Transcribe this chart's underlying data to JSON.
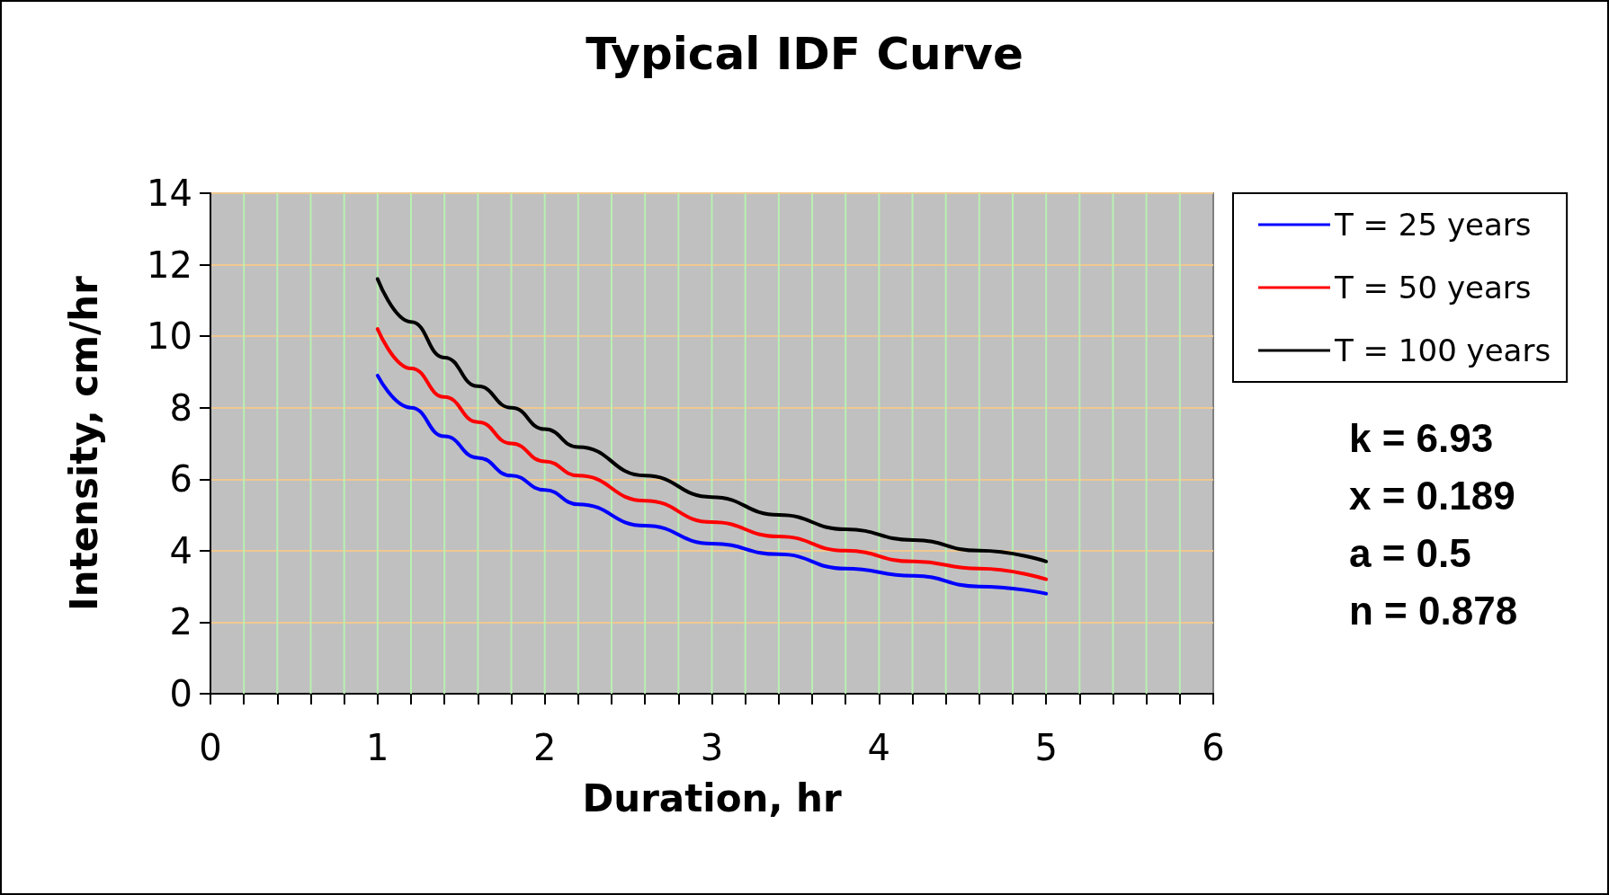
{
  "chart_data": {
    "type": "line",
    "title": "Typical IDF Curve",
    "xlabel": "Duration, hr",
    "ylabel": "Intensity, cm/hr",
    "x": [
      1,
      1.2,
      1.4,
      1.6,
      1.8,
      2,
      2.2,
      2.6,
      3,
      3.4,
      3.8,
      4.2,
      4.6,
      5
    ],
    "series": [
      {
        "name": "T = 25 years",
        "color": "#0000ff",
        "values": [
          8.9,
          8.0,
          7.2,
          6.6,
          6.1,
          5.7,
          5.3,
          4.7,
          4.2,
          3.9,
          3.5,
          3.3,
          3.0,
          2.8
        ]
      },
      {
        "name": "T = 50 years",
        "color": "#ff0000",
        "values": [
          10.2,
          9.1,
          8.3,
          7.6,
          7.0,
          6.5,
          6.1,
          5.4,
          4.8,
          4.4,
          4.0,
          3.7,
          3.5,
          3.2
        ]
      },
      {
        "name": "T = 100 years",
        "color": "#000000",
        "values": [
          11.6,
          10.4,
          9.4,
          8.6,
          8.0,
          7.4,
          6.9,
          6.1,
          5.5,
          5.0,
          4.6,
          4.3,
          4.0,
          3.7
        ]
      }
    ],
    "xlim": [
      0,
      6
    ],
    "xticks": [
      0,
      {
        "value": 0.2,
        "label": null
      },
      {
        "value": 0.4,
        "label": null
      },
      {
        "value": 0.6,
        "label": null
      },
      {
        "value": 0.8,
        "label": null
      },
      1,
      {
        "value": 1.2,
        "label": null
      },
      {
        "value": 1.4,
        "label": null
      },
      {
        "value": 1.6,
        "label": null
      },
      {
        "value": 1.8,
        "label": null
      },
      2,
      {
        "value": 2.2,
        "label": null
      },
      {
        "value": 2.4,
        "label": null
      },
      {
        "value": 2.6,
        "label": null
      },
      {
        "value": 2.8,
        "label": null
      },
      3,
      {
        "value": 3.2,
        "label": null
      },
      {
        "value": 3.4,
        "label": null
      },
      {
        "value": 3.6,
        "label": null
      },
      {
        "value": 3.8,
        "label": null
      },
      4,
      {
        "value": 4.2,
        "label": null
      },
      {
        "value": 4.4,
        "label": null
      },
      {
        "value": 4.6,
        "label": null
      },
      {
        "value": 4.8,
        "label": null
      },
      5,
      {
        "value": 5.2,
        "label": null
      },
      {
        "value": 5.4,
        "label": null
      },
      {
        "value": 5.6,
        "label": null
      },
      {
        "value": 5.8,
        "label": null
      },
      6
    ],
    "ylim": [
      0,
      14
    ],
    "yticks": [
      0,
      2,
      4,
      6,
      8,
      10,
      12,
      14
    ],
    "grid": true,
    "legend": "top right",
    "marker": "none",
    "line_style": "solid",
    "annotations": [
      "k = 6.93",
      "x = 0.189",
      "a = 0.5",
      "n = 0.878"
    ]
  }
}
